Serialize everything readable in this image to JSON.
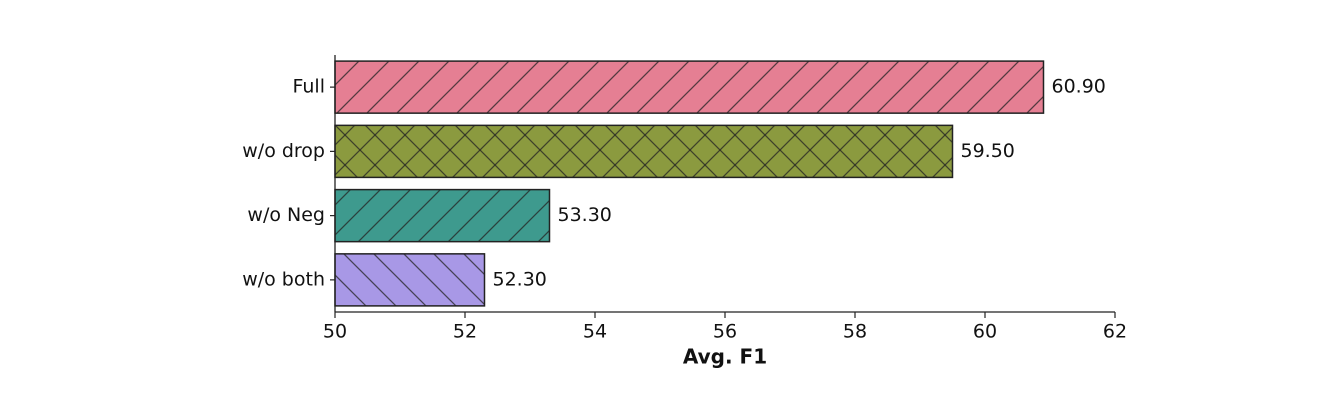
{
  "chart_data": {
    "type": "barh",
    "categories": [
      "Full",
      "w/o drop",
      "w/o Neg",
      "w/o both"
    ],
    "values": [
      60.9,
      59.5,
      53.3,
      52.3
    ],
    "value_labels": [
      "60.90",
      "59.50",
      "53.30",
      "52.30"
    ],
    "colors": [
      "#e57f93",
      "#8b9a3f",
      "#3e9a8e",
      "#a898e6"
    ],
    "hatches": [
      "/",
      "x",
      "/",
      "\\"
    ],
    "xlabel": "Avg. F1",
    "xlim": [
      50,
      62
    ],
    "xticks": [
      50,
      52,
      54,
      56,
      58,
      60,
      62
    ]
  }
}
